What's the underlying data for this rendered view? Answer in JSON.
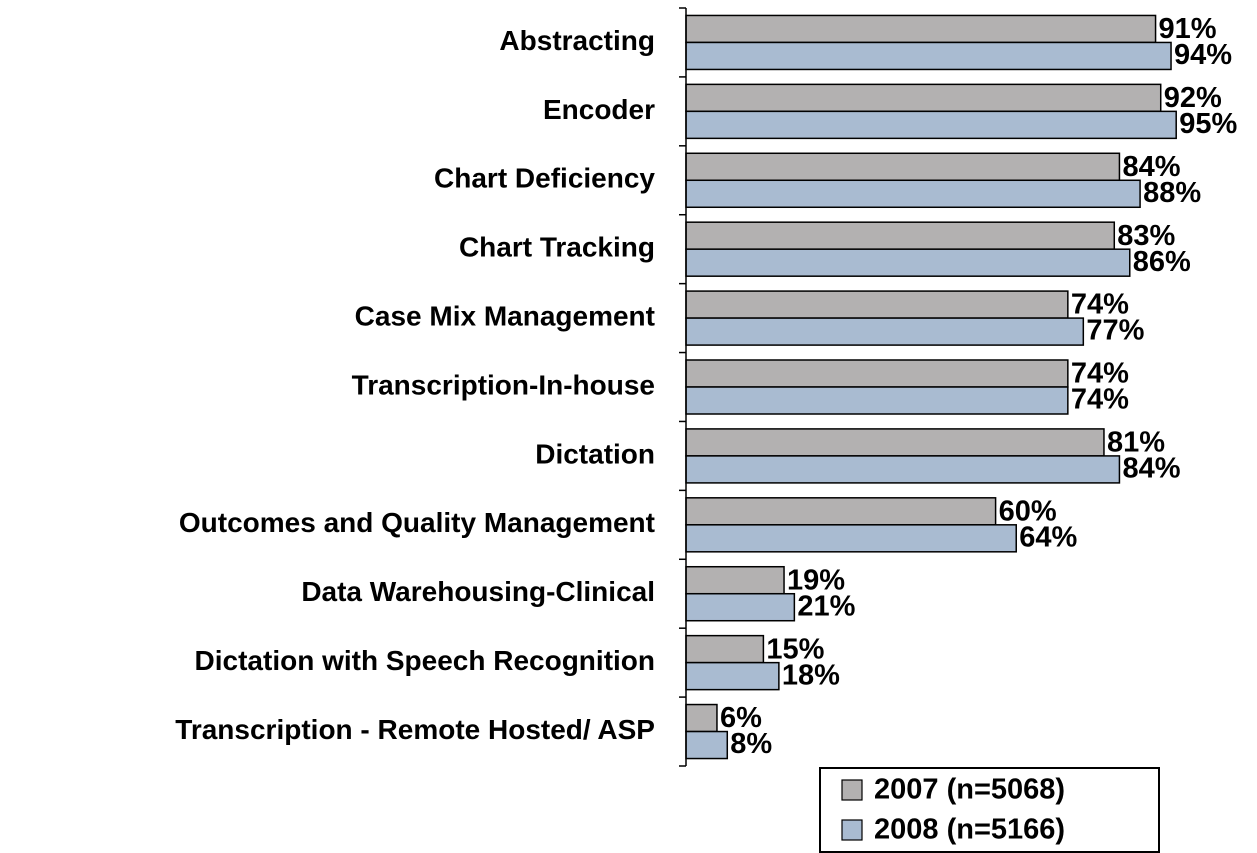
{
  "chart_data": {
    "type": "bar",
    "orientation": "horizontal",
    "categories": [
      "Abstracting",
      "Encoder",
      "Chart Deficiency",
      "Chart Tracking",
      "Case Mix Management",
      "Transcription-In-house",
      "Dictation",
      "Outcomes and Quality Management",
      "Data Warehousing-Clinical ",
      "Dictation with Speech Recognition",
      "Transcription - Remote Hosted/ ASP"
    ],
    "series": [
      {
        "name": "2007 (n=5068)",
        "color": "#b3b1b1",
        "values": [
          91,
          92,
          84,
          83,
          74,
          74,
          81,
          60,
          19,
          15,
          6
        ],
        "value_labels": [
          "91%",
          "92%",
          "84%",
          "83%",
          "74%",
          "74%",
          "81%",
          "60%",
          "19%",
          "15%",
          "6%"
        ]
      },
      {
        "name": "2008 (n=5166)",
        "color": "#a9bbd1",
        "values": [
          94,
          95,
          88,
          86,
          77,
          74,
          84,
          64,
          21,
          18,
          8
        ],
        "value_labels": [
          "94%",
          "95%",
          "88%",
          "86%",
          "77%",
          "74%",
          "84%",
          "64%",
          "21%",
          "18%",
          "8%"
        ]
      }
    ],
    "xlim": [
      0,
      100
    ]
  }
}
